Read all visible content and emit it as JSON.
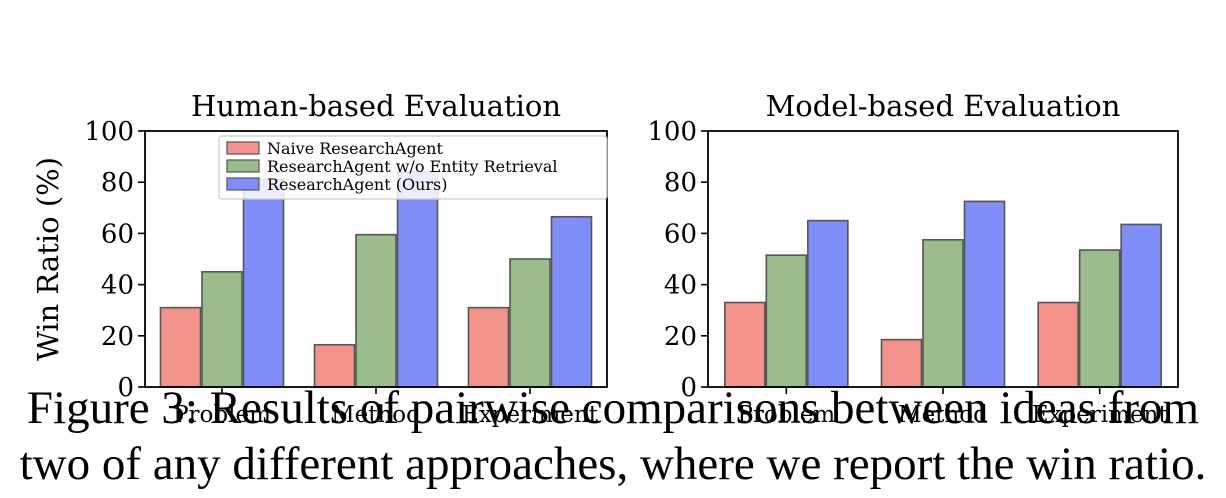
{
  "chart_data": [
    {
      "type": "bar",
      "title": "Human-based Evaluation",
      "ylabel": "Win Ratio (%)",
      "xlabel": "",
      "ylim": [
        0,
        100
      ],
      "yticks": [
        0,
        20,
        40,
        60,
        80,
        100
      ],
      "categories": [
        "Problem",
        "Method",
        "Experiment"
      ],
      "series": [
        {
          "name": "Naive ResearchAgent",
          "color": "#f4938c",
          "values": [
            31,
            16.5,
            31
          ]
        },
        {
          "name": "ResearchAgent w/o Entity Retrieval",
          "color": "#9bbd8c",
          "values": [
            45,
            59.5,
            50
          ]
        },
        {
          "name": "ResearchAgent (Ours)",
          "color": "#7f8ef8",
          "values": [
            81,
            84,
            66.5
          ]
        }
      ],
      "legend": "top-center",
      "grid": false
    },
    {
      "type": "bar",
      "title": "Model-based Evaluation",
      "ylabel": "",
      "xlabel": "",
      "ylim": [
        0,
        100
      ],
      "yticks": [
        0,
        20,
        40,
        60,
        80,
        100
      ],
      "categories": [
        "Problem",
        "Method",
        "Experiment"
      ],
      "series": [
        {
          "name": "Naive ResearchAgent",
          "color": "#f4938c",
          "values": [
            33,
            18.5,
            33
          ]
        },
        {
          "name": "ResearchAgent w/o Entity Retrieval",
          "color": "#9bbd8c",
          "values": [
            51.5,
            57.5,
            53.5
          ]
        },
        {
          "name": "ResearchAgent (Ours)",
          "color": "#7f8ef8",
          "values": [
            65,
            72.5,
            63.5
          ]
        }
      ],
      "legend": "none",
      "grid": false
    }
  ],
  "caption": {
    "line1": "Figure 3: Results of pairwise comparisons between ideas from",
    "line2": "two of any different approaches, where we report the win ratio."
  }
}
